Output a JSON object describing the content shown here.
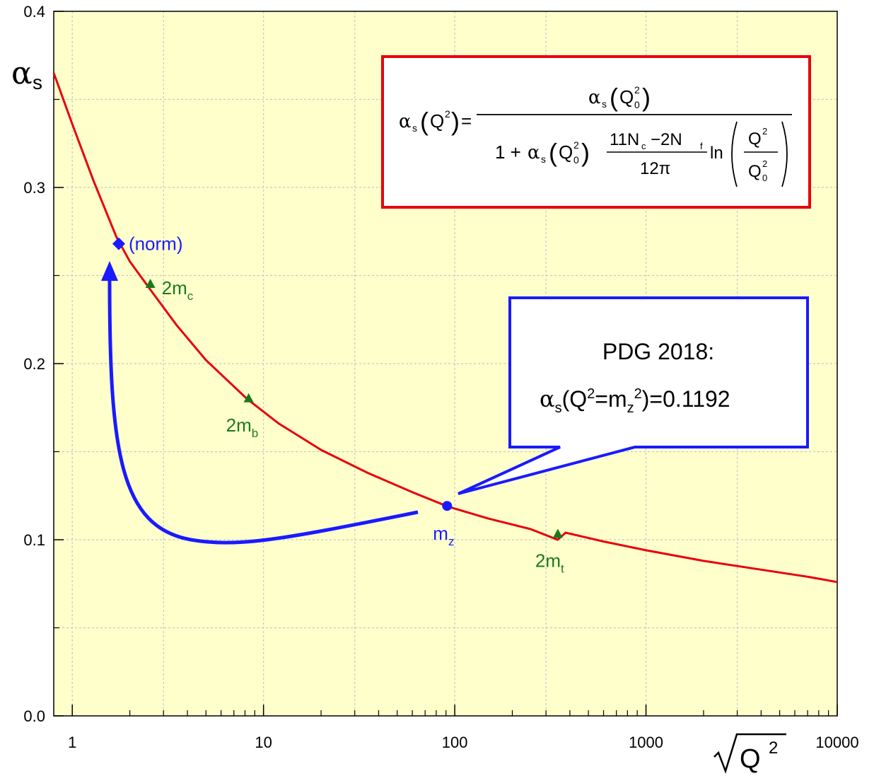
{
  "chart_data": {
    "type": "line",
    "x_scale": "log",
    "xlim": [
      0.8,
      10000
    ],
    "ylim": [
      0.0,
      0.4
    ],
    "x_ticks": [
      "1",
      "10",
      "100",
      "1000",
      "10000"
    ],
    "y_ticks": [
      "0.0",
      "0.1",
      "0.2",
      "0.3",
      "0.4"
    ],
    "ylabel": "αs",
    "xlabel": "√Q²",
    "grid": true,
    "series": [
      {
        "color": "#e8000e",
        "x": [
          0.8,
          1.0,
          1.3,
          1.7,
          2.0,
          2.6,
          3.5,
          5.0,
          8.2,
          12,
          20,
          35,
          60,
          91.19,
          150,
          250,
          345,
          380,
          600,
          1000,
          2000,
          4000,
          7000,
          10000
        ],
        "y": [
          0.365,
          0.336,
          0.303,
          0.272,
          0.258,
          0.241,
          0.222,
          0.202,
          0.18,
          0.166,
          0.151,
          0.138,
          0.127,
          0.119,
          0.112,
          0.106,
          0.1,
          0.104,
          0.099,
          0.094,
          0.088,
          0.083,
          0.079,
          0.076
        ]
      }
    ],
    "markers": [
      {
        "label": "(norm)",
        "x": 1.75,
        "y": 0.268,
        "shape": "diamond",
        "color": "#1a1aff"
      },
      {
        "label_main": "2m",
        "label_sub": "c",
        "x": 2.56,
        "y": 0.245,
        "shape": "triangle",
        "color": "#1a7a1a"
      },
      {
        "label_main": "2m",
        "label_sub": "b",
        "x": 8.36,
        "y": 0.18,
        "shape": "triangle",
        "color": "#1a7a1a"
      },
      {
        "label_main": "m",
        "label_sub": "z",
        "x": 91.19,
        "y": 0.1192,
        "shape": "circle",
        "color": "#1a1aff"
      },
      {
        "label_main": "2m",
        "label_sub": "t",
        "x": 346,
        "y": 0.103,
        "shape": "triangle",
        "color": "#1a7a1a"
      }
    ],
    "annotations": {
      "callout_line1": "PDG 2018:",
      "callout_alpha": "α",
      "callout_s": "s",
      "callout_open": "(Q",
      "callout_sup1": "2",
      "callout_eq": "=m",
      "callout_z": "z",
      "callout_sup2": "2",
      "callout_close": ")=0.1192",
      "formula": {
        "alpha": "α",
        "s": "s",
        "Q": "Q",
        "two": "2",
        "zero": "0",
        "equals": "=",
        "one_plus": "1 +",
        "eleven_Nc": "11N",
        "c": "c",
        "minus_2Nf": "−2N",
        "f": "f",
        "twelve_pi": "12π",
        "ln": "ln"
      }
    },
    "colors": {
      "plot_bg": "#ffffcc",
      "curve": "#e8000e",
      "formula_border": "#e8000e",
      "callout_border": "#1a1aff",
      "arrow": "#1a1aff",
      "thresholds": "#1a7a1a"
    }
  }
}
